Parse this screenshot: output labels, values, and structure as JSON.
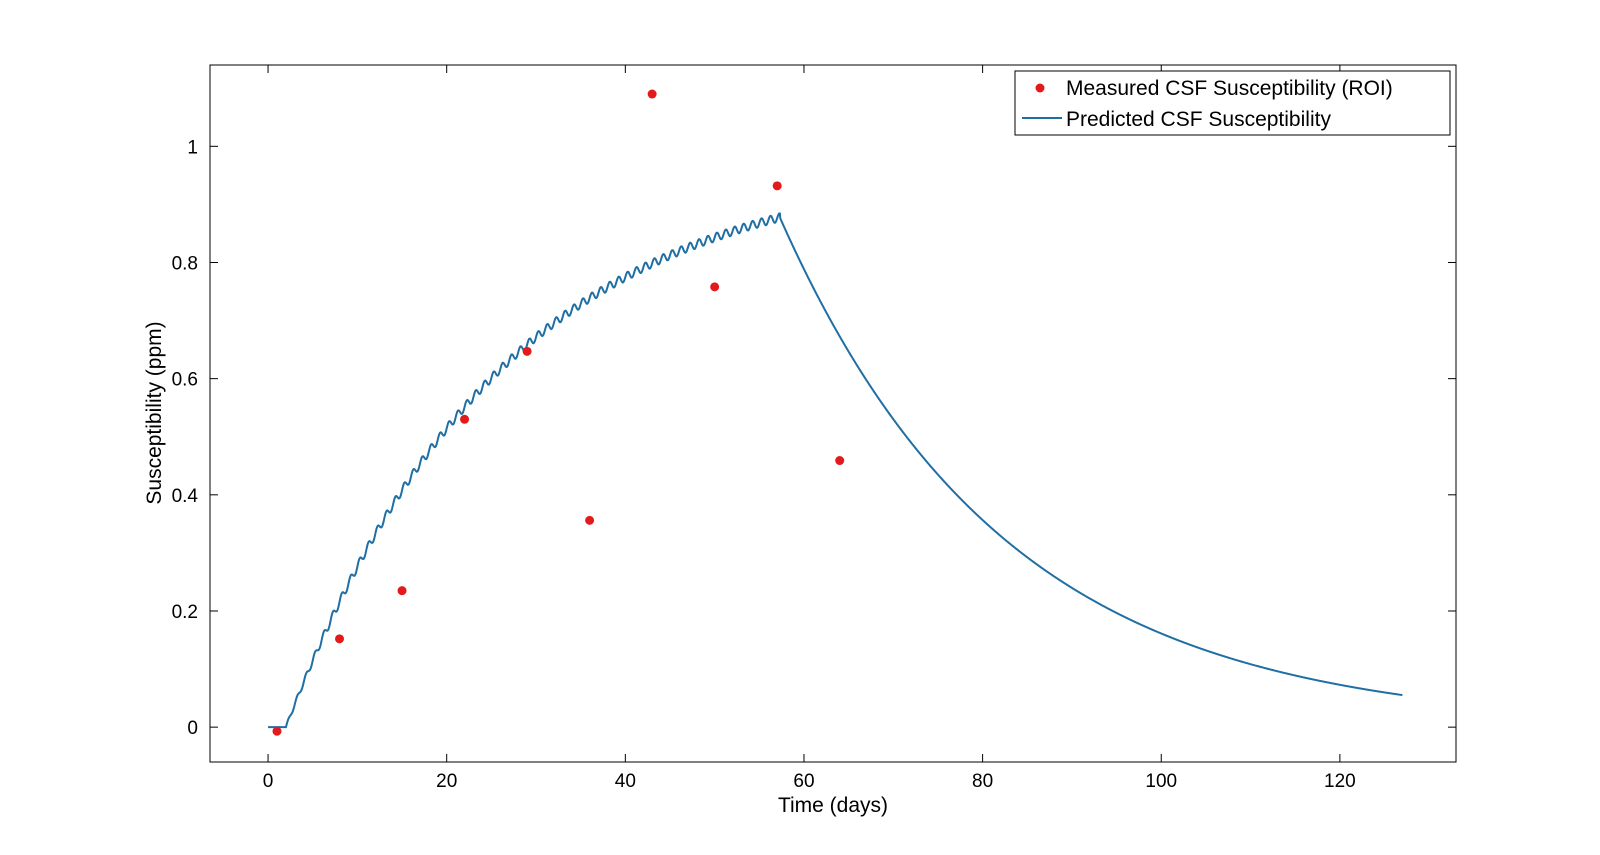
{
  "chart_data": {
    "type": "scatter",
    "title": "",
    "xlabel": "Time (days)",
    "ylabel": "Susceptibility (ppm)",
    "xlim": [
      -6.5,
      133
    ],
    "ylim": [
      -0.06,
      1.14
    ],
    "xticks": [
      0,
      20,
      40,
      60,
      80,
      100,
      120
    ],
    "xtick_labels": [
      "0",
      "20",
      "40",
      "60",
      "80",
      "100",
      "120"
    ],
    "yticks": [
      0,
      0.2,
      0.4,
      0.6,
      0.8,
      1
    ],
    "ytick_labels": [
      "0",
      "0.2",
      "0.4",
      "0.6",
      "0.8",
      "1"
    ],
    "grid": false,
    "legend_position": "top-right",
    "colors": {
      "measured": "#e31a1c",
      "predicted": "#1f6fa5"
    },
    "series": [
      {
        "name": "Measured CSF Susceptibility (ROI)",
        "kind": "scatter",
        "x": [
          1,
          8,
          15,
          22,
          29,
          36,
          43,
          50,
          57,
          64
        ],
        "y": [
          -0.007,
          0.152,
          0.235,
          0.53,
          0.647,
          0.356,
          1.09,
          0.758,
          0.932,
          0.459
        ]
      },
      {
        "name": "Predicted CSF Susceptibility",
        "kind": "line",
        "model": {
          "baseline_start": 0,
          "onset": 2,
          "dose_end": 57.3,
          "rise_tau": 24,
          "plateau": 0.975,
          "decay_tau": 25.2,
          "end": 127,
          "ripple_period": 1,
          "ripple_amplitude": 0.007
        }
      }
    ]
  }
}
